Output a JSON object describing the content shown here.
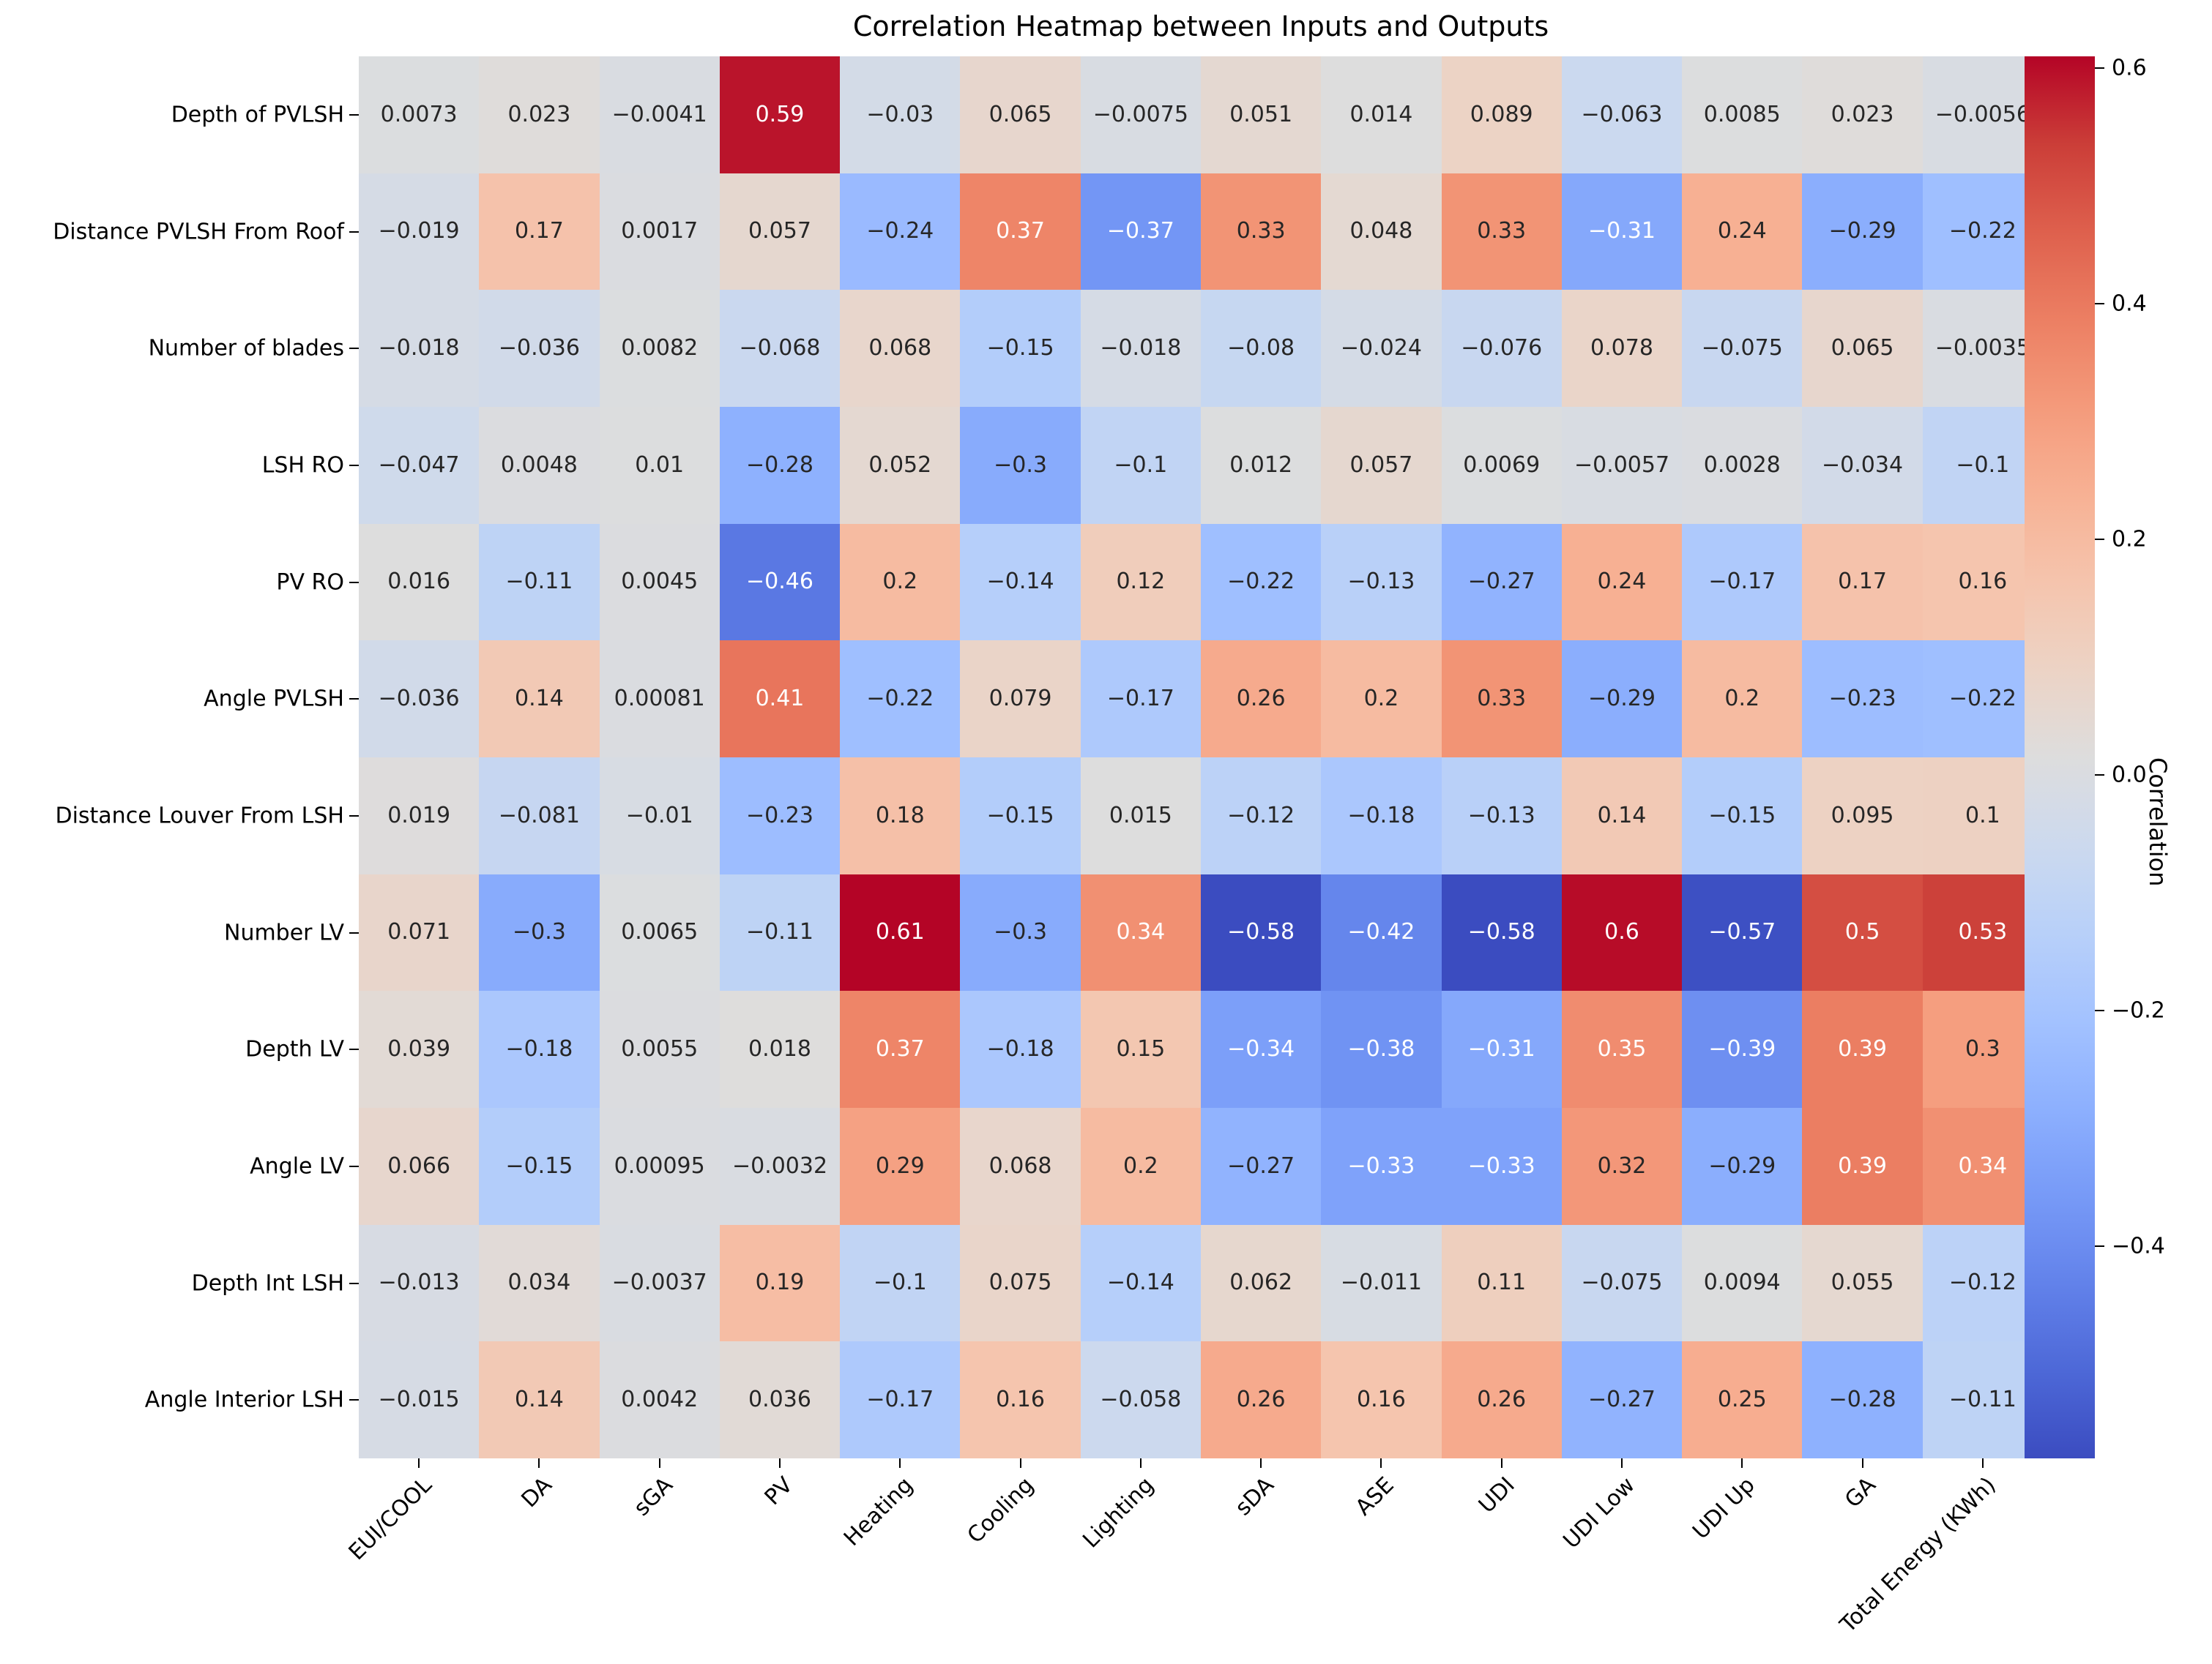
{
  "chart_data": {
    "type": "heatmap",
    "title": "Correlation Heatmap between Inputs and Outputs",
    "colorbar_label": "Correlation",
    "colormap": "coolwarm",
    "vmin": -0.58,
    "vmax": 0.61,
    "colorbar_tick_labels": [
      "0.6",
      "0.4",
      "0.2",
      "0.0",
      "-0.2",
      "-0.4"
    ],
    "rows": [
      "Depth of PVLSH",
      "Distance PVLSH From Roof",
      "Number of blades",
      "LSH RO",
      "PV RO",
      "Angle PVLSH",
      "Distance Louver From LSH",
      "Number LV",
      "Depth LV",
      "Angle LV",
      "Depth Int LSH",
      "Angle Interior LSH"
    ],
    "columns": [
      "EUI/COOL",
      "DA",
      "sGA",
      "PV",
      "Heating",
      "Cooling",
      "Lighting",
      "sDA",
      "ASE",
      "UDI",
      "UDI Low",
      "UDI Up",
      "GA",
      "Total Energy (KWh)"
    ],
    "values": [
      [
        "0.0073",
        "0.023",
        "-0.0041",
        "0.59",
        "-0.03",
        "0.065",
        "-0.0075",
        "0.051",
        "0.014",
        "0.089",
        "-0.063",
        "0.0085",
        "0.023",
        "-0.0056"
      ],
      [
        "-0.019",
        "0.17",
        "0.0017",
        "0.057",
        "-0.24",
        "0.37",
        "-0.37",
        "0.33",
        "0.048",
        "0.33",
        "-0.31",
        "0.24",
        "-0.29",
        "-0.22"
      ],
      [
        "-0.018",
        "-0.036",
        "0.0082",
        "-0.068",
        "0.068",
        "-0.15",
        "-0.018",
        "-0.08",
        "-0.024",
        "-0.076",
        "0.078",
        "-0.075",
        "0.065",
        "-0.0035"
      ],
      [
        "-0.047",
        "0.0048",
        "0.01",
        "-0.28",
        "0.052",
        "-0.3",
        "-0.1",
        "0.012",
        "0.057",
        "0.0069",
        "-0.0057",
        "0.0028",
        "-0.034",
        "-0.1"
      ],
      [
        "0.016",
        "-0.11",
        "0.0045",
        "-0.46",
        "0.2",
        "-0.14",
        "0.12",
        "-0.22",
        "-0.13",
        "-0.27",
        "0.24",
        "-0.17",
        "0.17",
        "0.16"
      ],
      [
        "-0.036",
        "0.14",
        "0.00081",
        "0.41",
        "-0.22",
        "0.079",
        "-0.17",
        "0.26",
        "0.2",
        "0.33",
        "-0.29",
        "0.2",
        "-0.23",
        "-0.22"
      ],
      [
        "0.019",
        "-0.081",
        "-0.01",
        "-0.23",
        "0.18",
        "-0.15",
        "0.015",
        "-0.12",
        "-0.18",
        "-0.13",
        "0.14",
        "-0.15",
        "0.095",
        "0.1"
      ],
      [
        "0.071",
        "-0.3",
        "0.0065",
        "-0.11",
        "0.61",
        "-0.3",
        "0.34",
        "-0.58",
        "-0.42",
        "-0.58",
        "0.6",
        "-0.57",
        "0.5",
        "0.53"
      ],
      [
        "0.039",
        "-0.18",
        "0.0055",
        "0.018",
        "0.37",
        "-0.18",
        "0.15",
        "-0.34",
        "-0.38",
        "-0.31",
        "0.35",
        "-0.39",
        "0.39",
        "0.3"
      ],
      [
        "0.066",
        "-0.15",
        "0.00095",
        "-0.0032",
        "0.29",
        "0.068",
        "0.2",
        "-0.27",
        "-0.33",
        "-0.33",
        "0.32",
        "-0.29",
        "0.39",
        "0.34"
      ],
      [
        "-0.013",
        "0.034",
        "-0.0037",
        "0.19",
        "-0.1",
        "0.075",
        "-0.14",
        "0.062",
        "-0.011",
        "0.11",
        "-0.075",
        "0.0094",
        "0.055",
        "-0.12"
      ],
      [
        "-0.015",
        "0.14",
        "0.0042",
        "0.036",
        "-0.17",
        "0.16",
        "-0.058",
        "0.26",
        "0.16",
        "0.26",
        "-0.27",
        "0.25",
        "-0.28",
        "-0.11"
      ]
    ],
    "annotation_text_colors": {
      "dark": "#262626",
      "light": "#ffffff"
    }
  }
}
